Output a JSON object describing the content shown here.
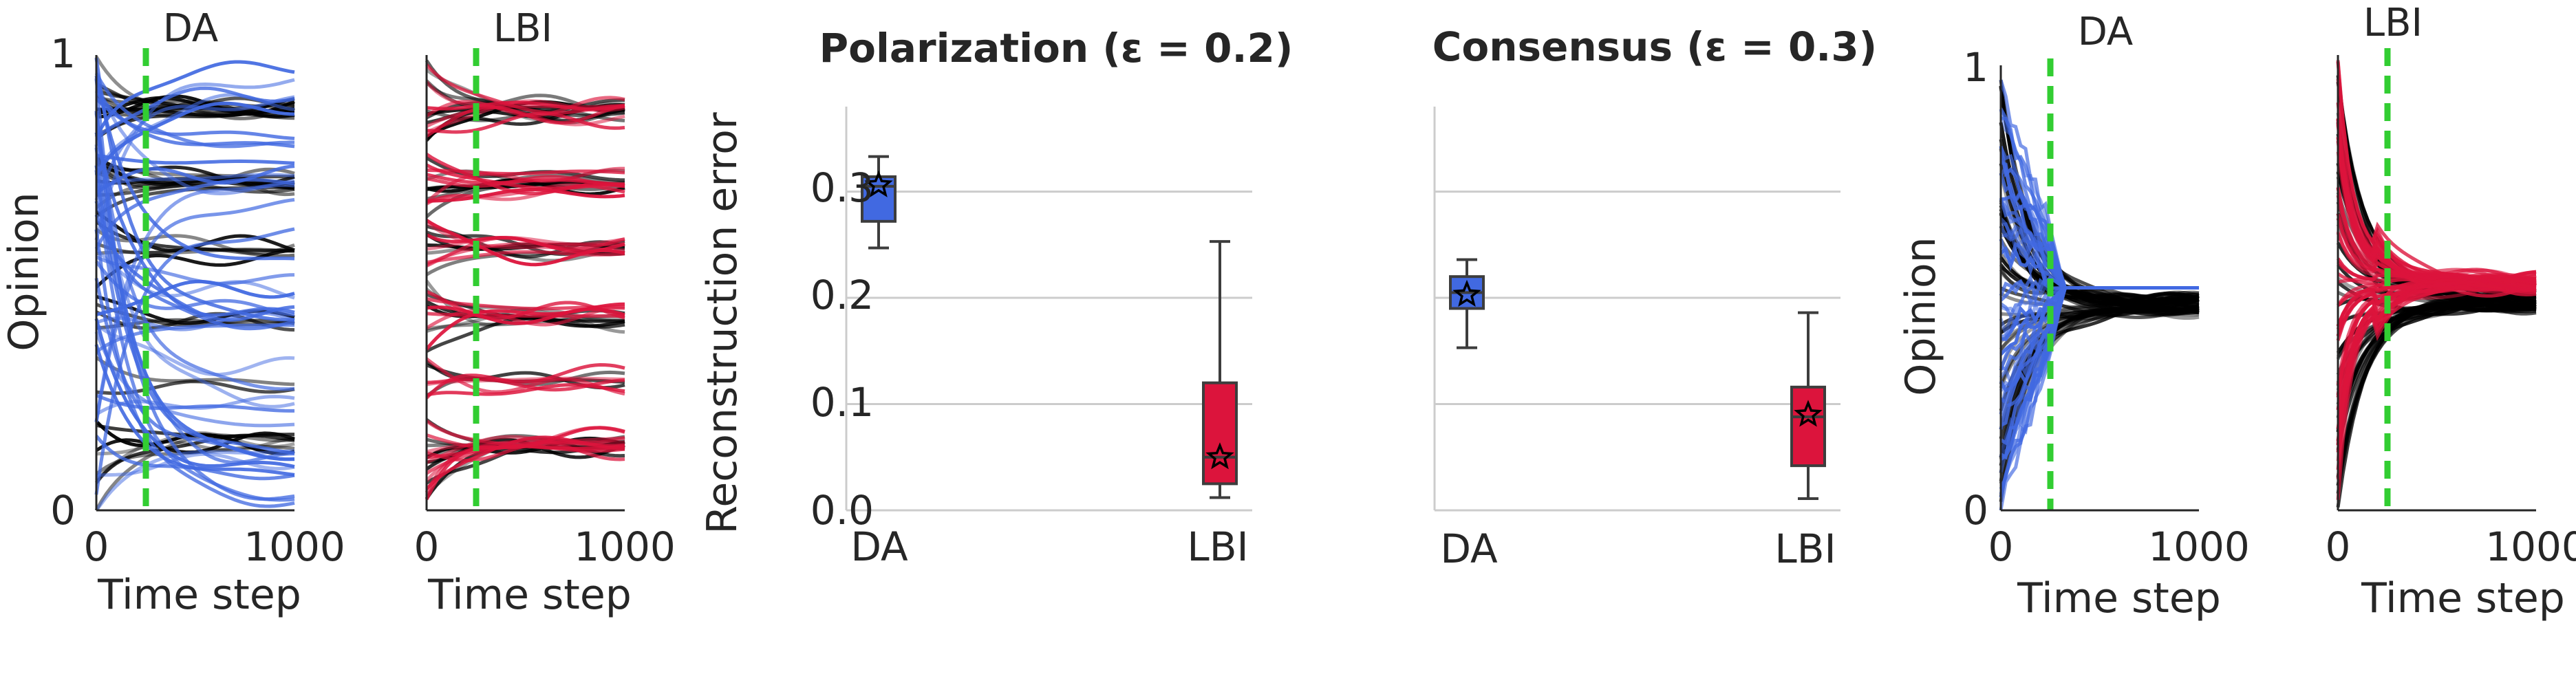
{
  "colors": {
    "DA": "#4169e1",
    "LBI": "#dc143c",
    "sim": "#000000",
    "marker": "#32cd32"
  },
  "chart_data": [
    {
      "type": "line",
      "title": "DA",
      "xlabel": "Time step",
      "ylabel": "Opinion",
      "xlim": [
        0,
        1000
      ],
      "ylim": [
        0,
        1
      ],
      "xticks": [
        "0",
        "1000"
      ],
      "yticks": [
        "0",
        "1"
      ],
      "marker_x": 250,
      "regime": "polarization",
      "method": "DA"
    },
    {
      "type": "line",
      "title": "LBI",
      "xlabel": "Time step",
      "ylabel": "",
      "xlim": [
        0,
        1000
      ],
      "ylim": [
        0,
        1
      ],
      "xticks": [
        "0",
        "1000"
      ],
      "yticks": [],
      "marker_x": 250,
      "regime": "polarization",
      "method": "LBI"
    },
    {
      "type": "box",
      "title": "Polarization (ε = 0.2)",
      "ylabel": "Reconstruction error",
      "categories": [
        "DA",
        "LBI"
      ],
      "yticks": [
        "0.0",
        "0.1",
        "0.2",
        "0.3"
      ],
      "ylim": [
        0,
        0.38
      ],
      "boxes": [
        {
          "name": "DA",
          "min": 0.247,
          "q1": 0.272,
          "median": 0.305,
          "q3": 0.314,
          "max": 0.333,
          "mean": 0.306
        },
        {
          "name": "LBI",
          "min": 0.012,
          "q1": 0.025,
          "median": 0.05,
          "q3": 0.12,
          "max": 0.253,
          "mean": 0.05
        }
      ]
    },
    {
      "type": "box",
      "title": "Consensus (ε = 0.3)",
      "ylabel": "",
      "categories": [
        "DA",
        "LBI"
      ],
      "ylim": [
        0,
        0.38
      ],
      "boxes": [
        {
          "name": "DA",
          "min": 0.153,
          "q1": 0.19,
          "median": 0.205,
          "q3": 0.22,
          "max": 0.236,
          "mean": 0.203
        },
        {
          "name": "LBI",
          "min": 0.011,
          "q1": 0.042,
          "median": 0.088,
          "q3": 0.116,
          "max": 0.186,
          "mean": 0.09
        }
      ]
    },
    {
      "type": "line",
      "title": "DA",
      "xlabel": "Time step",
      "ylabel": "Opinion",
      "xlim": [
        0,
        1000
      ],
      "ylim": [
        0,
        1
      ],
      "xticks": [
        "0",
        "1000"
      ],
      "yticks": [
        "0",
        "1"
      ],
      "marker_x": 250,
      "regime": "consensus",
      "method": "DA"
    },
    {
      "type": "line",
      "title": "LBI",
      "xlabel": "Time step",
      "ylabel": "",
      "xlim": [
        0,
        1000
      ],
      "ylim": [
        0,
        1
      ],
      "xticks": [
        "0",
        "1000"
      ],
      "yticks": [],
      "marker_x": 250,
      "regime": "consensus",
      "method": "LBI"
    }
  ]
}
